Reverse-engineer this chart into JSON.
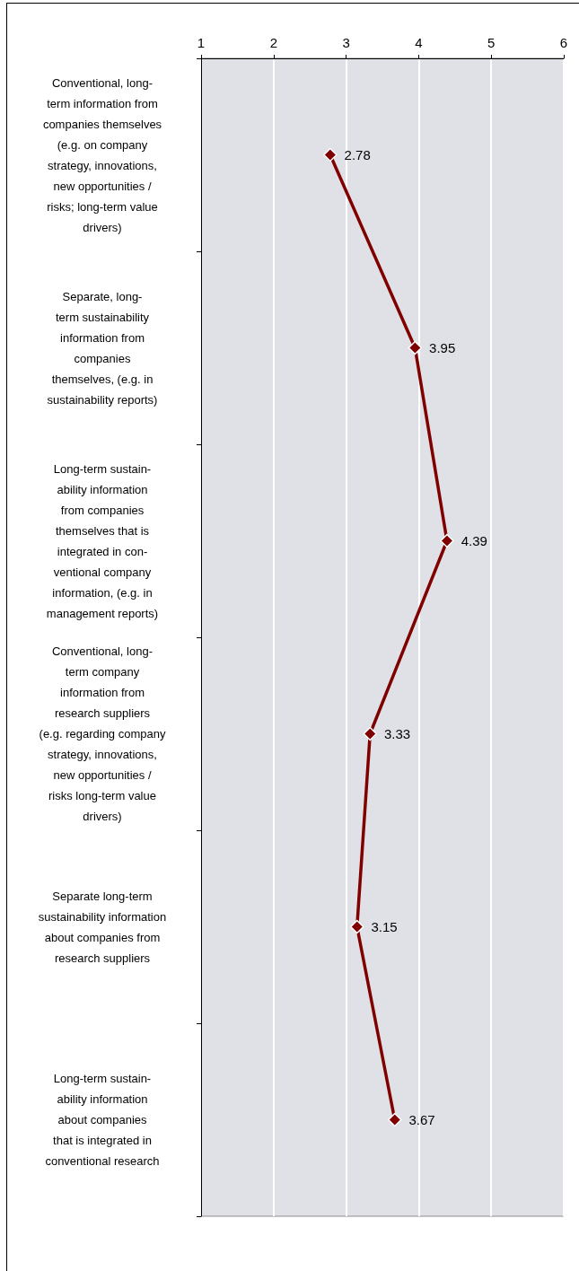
{
  "chart_data": {
    "type": "line",
    "orientation": "horizontal",
    "categories": [
      "Conventional, long-\nterm information from\ncompanies themselves\n(e.g. on company\nstrategy, innovations,\nnew opportunities /\nrisks; long-term value\ndrivers)",
      "Separate, long-\nterm sustainability\ninformation from\ncompanies\nthemselves, (e.g. in\nsustainability reports)",
      "Long-term sustain-\nability information\nfrom companies\nthemselves that is\nintegrated in con-\nventional company\ninformation, (e.g. in\nmanagement reports)",
      "Conventional, long-\nterm company\ninformation from\nresearch suppliers\n(e.g. regarding company\nstrategy, innovations,\nnew opportunities /\nrisks long-term value\ndrivers)",
      "Separate long-term\nsustainability information\nabout companies from\nresearch suppliers",
      "Long-term sustain-\nability information\nabout companies\nthat is integrated in\nconventional research"
    ],
    "series": [
      {
        "color": "#800000",
        "values": [
          2.78,
          3.95,
          4.39,
          3.33,
          3.15,
          3.67
        ]
      }
    ],
    "xlim": [
      1,
      6
    ],
    "xticks": [
      1,
      2,
      3,
      4,
      5,
      6
    ],
    "grid": "x",
    "marker": "diamond",
    "line_style": "solid",
    "data_labels": true
  }
}
